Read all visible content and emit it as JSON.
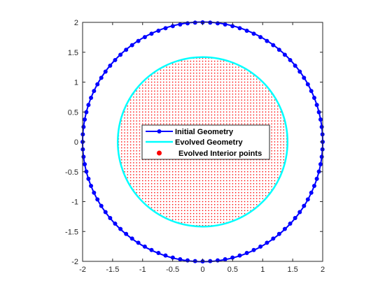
{
  "chart_data": {
    "type": "scatter",
    "title": "",
    "xlabel": "",
    "ylabel": "",
    "xlim": [
      -2,
      2
    ],
    "ylim": [
      -2,
      2
    ],
    "xticks": [
      -2,
      -1.5,
      -1,
      -0.5,
      0,
      0.5,
      1,
      1.5,
      2
    ],
    "yticks": [
      -2,
      -1.5,
      -1,
      -0.5,
      0,
      0.5,
      1,
      1.5,
      2
    ],
    "xtick_labels": [
      "-2",
      "-1.5",
      "-1",
      "-0.5",
      "0",
      "0.5",
      "1",
      "1.5",
      "2"
    ],
    "ytick_labels": [
      "-2",
      "-1.5",
      "-1",
      "-0.5",
      "0",
      "0.5",
      "1",
      "1.5",
      "2"
    ],
    "grid": false,
    "legend_position": "center",
    "series": [
      {
        "name": "Initial Geometry",
        "kind": "circle-line-with-markers",
        "center": [
          0,
          0
        ],
        "radius": 2,
        "marker_count": 100,
        "color": "#0000ff"
      },
      {
        "name": "Evolved Geometry",
        "kind": "circle-line",
        "center": [
          0,
          0
        ],
        "radius": 1.414,
        "color": "#00ffff"
      },
      {
        "name": "Evolved Interior points",
        "kind": "point-grid-inside-circle",
        "center": [
          0,
          0
        ],
        "radius": 1.414,
        "grid_spacing": 0.05,
        "color": "#ff0000"
      }
    ]
  }
}
